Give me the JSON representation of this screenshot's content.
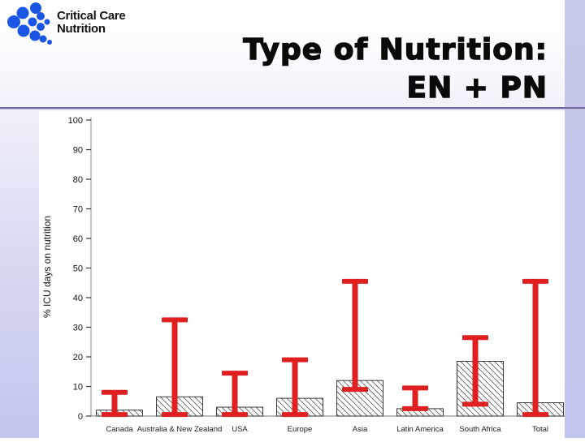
{
  "logo": {
    "line1": "Critical Care",
    "line2": "Nutrition",
    "icon": "chevron-dots-logo",
    "icon_color": "#1a56e6"
  },
  "title": {
    "line1": "Type of Nutrition:",
    "line2": "EN + PN"
  },
  "colors": {
    "divider": "#6b6b9f",
    "background_bottom": "#c3c6ee",
    "right_strip": "#c4c6e9",
    "chart_background": "#ffffff"
  },
  "chart_data": {
    "type": "bar",
    "title": "",
    "xlabel": "",
    "ylabel": "% ICU days on nutrition",
    "ylim": [
      0,
      100
    ],
    "yticks": [
      0,
      10,
      20,
      30,
      40,
      50,
      60,
      70,
      80,
      90,
      100
    ],
    "grid": false,
    "legend": "none",
    "categories": [
      "Canada",
      "Australia & New Zealand",
      "USA",
      "Europe",
      "Asia",
      "Latin America",
      "South Africa",
      "Total"
    ],
    "values": [
      2,
      6.5,
      3,
      6,
      12,
      2.5,
      18.5,
      4.5
    ],
    "error_low": [
      0.5,
      0.5,
      0.5,
      0.5,
      9,
      2.5,
      4,
      0.5
    ],
    "error_high": [
      8,
      32.5,
      14.5,
      19,
      45.5,
      9.5,
      26.5,
      45.5
    ],
    "bar_fill": "#ffffff",
    "bar_hatch": "diagonal-backslash",
    "bar_border": "#3a3a3a",
    "error_color": "#e02020",
    "axis_color": "#909090"
  }
}
